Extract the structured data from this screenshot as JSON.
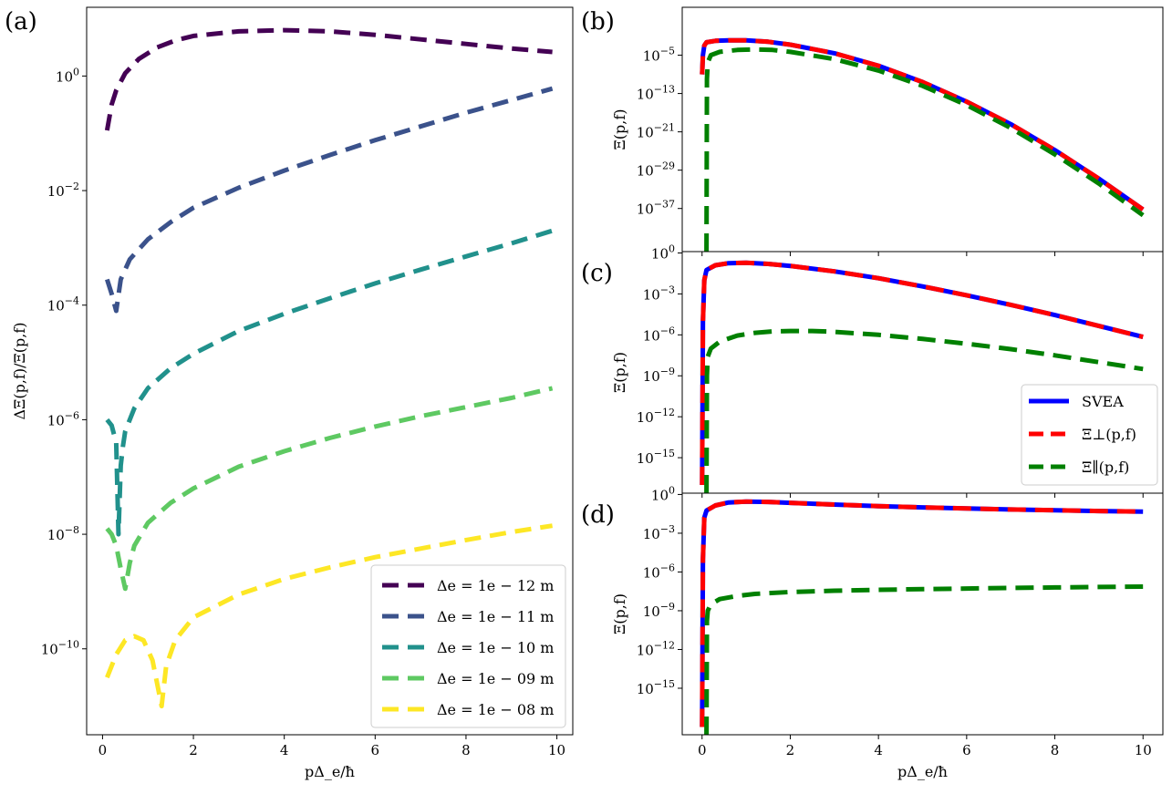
{
  "chart_data": [
    {
      "panel_label": "(a)",
      "type": "line",
      "yscale": "log",
      "xlabel": "pΔ_e/ħ",
      "ylabel": "ΔΞ(p,f)/Ξ(p,f)",
      "xlim": [
        -0.35,
        10.35
      ],
      "ylim_log10": [
        -11.5,
        1.2
      ],
      "xticks": [
        0,
        2,
        4,
        6,
        8,
        10
      ],
      "xtick_labels": [
        "0",
        "2",
        "4",
        "6",
        "8",
        "10"
      ],
      "yticks_exp": [
        0,
        -2,
        -4,
        -6,
        -8,
        -10
      ],
      "ytick_labels": [
        "10^0",
        "10^-2",
        "10^-4",
        "10^-6",
        "10^-8",
        "10^-10"
      ],
      "legend_loc": "lower-right",
      "series": [
        {
          "name": "Δe = 1e − 12 m",
          "color": "#440154",
          "style": "dashed",
          "x": [
            0.1,
            0.2,
            0.3,
            0.5,
            0.8,
            1.2,
            1.6,
            2.0,
            3.0,
            4.0,
            5.0,
            6.0,
            7.0,
            8.0,
            9.0,
            9.9
          ],
          "log10y": [
            -0.95,
            -0.5,
            -0.25,
            0.05,
            0.3,
            0.5,
            0.62,
            0.7,
            0.78,
            0.8,
            0.78,
            0.72,
            0.64,
            0.56,
            0.48,
            0.42
          ]
        },
        {
          "name": "Δe = 1e − 11 m",
          "color": "#3b528b",
          "style": "dashed",
          "x": [
            0.1,
            0.2,
            0.3,
            0.4,
            0.6,
            1.0,
            1.5,
            2.0,
            3.0,
            4.0,
            5.0,
            6.0,
            7.0,
            8.0,
            9.0,
            9.9
          ],
          "log10y": [
            -3.55,
            -3.8,
            -4.1,
            -3.55,
            -3.2,
            -2.85,
            -2.55,
            -2.3,
            -1.95,
            -1.65,
            -1.38,
            -1.12,
            -0.88,
            -0.64,
            -0.42,
            -0.22
          ]
        },
        {
          "name": "Δe = 1e − 10 m",
          "color": "#21918c",
          "style": "dashed",
          "x": [
            0.1,
            0.2,
            0.3,
            0.35,
            0.4,
            0.45,
            0.5,
            0.7,
            1.0,
            1.5,
            2.0,
            3.0,
            4.0,
            5.0,
            6.0,
            7.0,
            8.0,
            9.0,
            9.9
          ],
          "log10y": [
            -6.0,
            -6.1,
            -6.4,
            -8.0,
            -6.8,
            -6.45,
            -6.2,
            -5.8,
            -5.45,
            -5.1,
            -4.85,
            -4.45,
            -4.15,
            -3.88,
            -3.62,
            -3.38,
            -3.15,
            -2.92,
            -2.7
          ]
        },
        {
          "name": "Δe = 1e − 09 m",
          "color": "#5ec962",
          "style": "dashed",
          "x": [
            0.1,
            0.2,
            0.3,
            0.4,
            0.5,
            0.6,
            0.7,
            1.0,
            1.5,
            2.0,
            3.0,
            4.0,
            5.0,
            6.0,
            7.0,
            8.0,
            9.0,
            9.9
          ],
          "log10y": [
            -7.9,
            -8.0,
            -8.2,
            -8.6,
            -8.95,
            -8.5,
            -8.2,
            -7.8,
            -7.45,
            -7.2,
            -6.82,
            -6.55,
            -6.32,
            -6.12,
            -5.94,
            -5.78,
            -5.62,
            -5.45
          ]
        },
        {
          "name": "Δe = 1e − 08 m",
          "color": "#fde725",
          "style": "dashed",
          "x": [
            0.1,
            0.3,
            0.5,
            0.7,
            0.9,
            1.1,
            1.2,
            1.3,
            1.4,
            1.6,
            2.0,
            3.0,
            4.0,
            5.0,
            6.0,
            7.0,
            8.0,
            9.0,
            9.9
          ],
          "log10y": [
            -10.5,
            -10.1,
            -9.85,
            -9.78,
            -9.85,
            -10.2,
            -10.6,
            -11.0,
            -10.3,
            -9.85,
            -9.45,
            -9.05,
            -8.78,
            -8.58,
            -8.4,
            -8.25,
            -8.1,
            -7.96,
            -7.85
          ]
        }
      ]
    },
    {
      "panel_label": "(b)",
      "type": "line",
      "yscale": "log",
      "xlabel": "",
      "ylabel": "Ξ(p,f)",
      "xlim": [
        -0.45,
        10.45
      ],
      "ylim_log10": [
        -46,
        5
      ],
      "xticks": [
        0,
        2,
        4,
        6,
        8,
        10
      ],
      "yticks_exp": [
        -5,
        -13,
        -21,
        -29,
        -37
      ],
      "ytick_labels": [
        "10^-5",
        "10^-13",
        "10^-21",
        "10^-29",
        "10^-37"
      ],
      "series": [
        {
          "name": "SVEA",
          "color": "#0000ff",
          "style": "solid",
          "x": [
            0,
            0.02,
            0.05,
            0.1,
            0.3,
            0.6,
            1.0,
            1.5,
            2.0,
            3.0,
            4.0,
            5.0,
            6.0,
            7.0,
            8.0,
            9.0,
            10.0
          ],
          "log10y": [
            -9.0,
            -5.0,
            -3.0,
            -2.3,
            -2.0,
            -1.9,
            -1.9,
            -2.2,
            -2.8,
            -4.6,
            -7.2,
            -10.6,
            -14.7,
            -19.4,
            -24.8,
            -30.8,
            -37.2
          ]
        },
        {
          "name": "Ξ⊥(p,f)",
          "color": "#ff0000",
          "style": "dashed",
          "x": [
            0,
            0.02,
            0.05,
            0.1,
            0.3,
            0.6,
            1.0,
            1.5,
            2.0,
            3.0,
            4.0,
            5.0,
            6.0,
            7.0,
            8.0,
            9.0,
            10.0
          ],
          "log10y": [
            -9.0,
            -5.0,
            -3.0,
            -2.3,
            -2.0,
            -1.9,
            -1.9,
            -2.2,
            -2.8,
            -4.6,
            -7.2,
            -10.6,
            -14.7,
            -19.4,
            -24.8,
            -30.8,
            -37.2
          ]
        },
        {
          "name": "Ξ∥(p,f)",
          "color": "#008000",
          "style": "dashed",
          "x": [
            0.1,
            0.11,
            0.13,
            0.2,
            0.4,
            0.8,
            1.2,
            1.6,
            2.0,
            3.0,
            4.0,
            5.0,
            6.0,
            7.0,
            8.0,
            9.0,
            10.0
          ],
          "log10y": [
            -46,
            -10.0,
            -6.5,
            -5.0,
            -4.3,
            -3.9,
            -3.8,
            -3.9,
            -4.3,
            -5.8,
            -8.2,
            -11.4,
            -15.4,
            -20.2,
            -25.7,
            -31.8,
            -38.4
          ]
        }
      ]
    },
    {
      "panel_label": "(c)",
      "type": "line",
      "yscale": "log",
      "xlabel": "",
      "ylabel": "Ξ(p,f)",
      "xlim": [
        -0.45,
        10.45
      ],
      "ylim_log10": [
        -17.6,
        0.1
      ],
      "xticks": [
        0,
        2,
        4,
        6,
        8,
        10
      ],
      "yticks_exp": [
        0,
        -3,
        -6,
        -9,
        -12,
        -15
      ],
      "ytick_labels": [
        "10^0",
        "10^-3",
        "10^-6",
        "10^-9",
        "10^-12",
        "10^-15"
      ],
      "legend_loc": "lower-right",
      "series": [
        {
          "name": "SVEA",
          "color": "#0000ff",
          "style": "solid",
          "x": [
            0,
            0.02,
            0.05,
            0.1,
            0.3,
            0.6,
            1.0,
            1.5,
            2.0,
            3.0,
            4.0,
            5.0,
            6.0,
            7.0,
            8.0,
            9.0,
            10.0
          ],
          "log10y": [
            -17.0,
            -5.0,
            -2.0,
            -1.25,
            -0.9,
            -0.75,
            -0.72,
            -0.8,
            -0.95,
            -1.35,
            -1.85,
            -2.45,
            -3.1,
            -3.8,
            -4.55,
            -5.35,
            -6.15
          ]
        },
        {
          "name": "Ξ⊥(p,f)",
          "color": "#ff0000",
          "style": "dashed",
          "x": [
            0,
            0.02,
            0.05,
            0.1,
            0.3,
            0.6,
            1.0,
            1.5,
            2.0,
            3.0,
            4.0,
            5.0,
            6.0,
            7.0,
            8.0,
            9.0,
            10.0
          ],
          "log10y": [
            -17.0,
            -5.0,
            -2.0,
            -1.25,
            -0.9,
            -0.75,
            -0.72,
            -0.8,
            -0.95,
            -1.35,
            -1.85,
            -2.45,
            -3.1,
            -3.8,
            -4.55,
            -5.35,
            -6.15
          ]
        },
        {
          "name": "Ξ∥(p,f)",
          "color": "#008000",
          "style": "dashed",
          "x": [
            0.1,
            0.11,
            0.13,
            0.2,
            0.4,
            0.8,
            1.2,
            1.6,
            2.0,
            2.5,
            3.0,
            4.0,
            5.0,
            6.0,
            7.0,
            8.0,
            9.0,
            10.0
          ],
          "log10y": [
            -17.6,
            -9.0,
            -7.6,
            -7.0,
            -6.5,
            -6.05,
            -5.85,
            -5.75,
            -5.72,
            -5.72,
            -5.78,
            -6.0,
            -6.3,
            -6.65,
            -7.05,
            -7.5,
            -8.0,
            -8.5
          ]
        }
      ]
    },
    {
      "panel_label": "(d)",
      "type": "line",
      "yscale": "log",
      "xlabel": "pΔ_e/ħ",
      "ylabel": "Ξ(p,f)",
      "xlim": [
        -0.45,
        10.45
      ],
      "ylim_log10": [
        -18.6,
        0.1
      ],
      "xticks": [
        0,
        2,
        4,
        6,
        8,
        10
      ],
      "xtick_labels": [
        "0",
        "2",
        "4",
        "6",
        "8",
        "10"
      ],
      "yticks_exp": [
        0,
        -3,
        -6,
        -9,
        -12,
        -15
      ],
      "ytick_labels": [
        "10^0",
        "10^-3",
        "10^-6",
        "10^-9",
        "10^-12",
        "10^-15"
      ],
      "series": [
        {
          "name": "SVEA",
          "color": "#0000ff",
          "style": "solid",
          "x": [
            0,
            0.02,
            0.05,
            0.1,
            0.3,
            0.6,
            1.0,
            1.5,
            2.0,
            3.0,
            4.0,
            5.0,
            6.0,
            7.0,
            8.0,
            9.0,
            10.0
          ],
          "log10y": [
            -18.0,
            -5.0,
            -1.8,
            -1.25,
            -0.85,
            -0.62,
            -0.55,
            -0.58,
            -0.65,
            -0.78,
            -0.9,
            -1.0,
            -1.08,
            -1.16,
            -1.22,
            -1.28,
            -1.33
          ]
        },
        {
          "name": "Ξ⊥(p,f)",
          "color": "#ff0000",
          "style": "dashed",
          "x": [
            0,
            0.02,
            0.05,
            0.1,
            0.3,
            0.6,
            1.0,
            1.5,
            2.0,
            3.0,
            4.0,
            5.0,
            6.0,
            7.0,
            8.0,
            9.0,
            10.0
          ],
          "log10y": [
            -18.0,
            -5.0,
            -1.8,
            -1.25,
            -0.85,
            -0.62,
            -0.55,
            -0.58,
            -0.65,
            -0.78,
            -0.9,
            -1.0,
            -1.08,
            -1.16,
            -1.22,
            -1.28,
            -1.33
          ]
        },
        {
          "name": "Ξ∥(p,f)",
          "color": "#008000",
          "style": "dashed",
          "x": [
            0.1,
            0.11,
            0.13,
            0.2,
            0.4,
            0.8,
            1.2,
            2.0,
            3.0,
            4.0,
            5.0,
            6.0,
            7.0,
            8.0,
            9.0,
            10.0
          ],
          "log10y": [
            -18.6,
            -9.8,
            -9.0,
            -8.5,
            -8.1,
            -7.85,
            -7.7,
            -7.55,
            -7.45,
            -7.38,
            -7.33,
            -7.28,
            -7.24,
            -7.2,
            -7.16,
            -7.13
          ]
        }
      ]
    }
  ]
}
